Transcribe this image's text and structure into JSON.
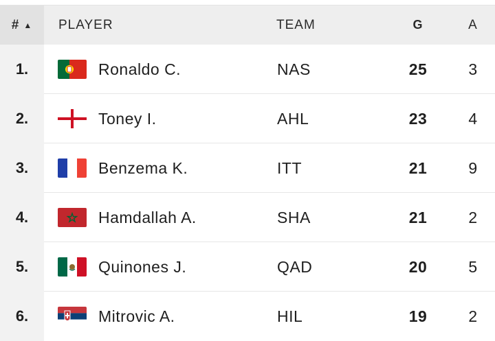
{
  "header": {
    "rank": "#",
    "sort_icon": "▲",
    "player": "PLAYER",
    "team": "TEAM",
    "goals": "G",
    "assists": "A"
  },
  "rows": [
    {
      "rank": "1.",
      "player": "Ronaldo C.",
      "team": "NAS",
      "goals": "25",
      "assists": "3",
      "flag": "portugal-flag-icon"
    },
    {
      "rank": "2.",
      "player": "Toney I.",
      "team": "AHL",
      "goals": "23",
      "assists": "4",
      "flag": "england-flag-icon"
    },
    {
      "rank": "3.",
      "player": "Benzema K.",
      "team": "ITT",
      "goals": "21",
      "assists": "9",
      "flag": "france-flag-icon"
    },
    {
      "rank": "4.",
      "player": "Hamdallah A.",
      "team": "SHA",
      "goals": "21",
      "assists": "2",
      "flag": "morocco-flag-icon"
    },
    {
      "rank": "5.",
      "player": "Quinones J.",
      "team": "QAD",
      "goals": "20",
      "assists": "5",
      "flag": "mexico-flag-icon"
    },
    {
      "rank": "6.",
      "player": "Mitrovic A.",
      "team": "HIL",
      "goals": "19",
      "assists": "2",
      "flag": "serbia-flag-icon"
    }
  ]
}
